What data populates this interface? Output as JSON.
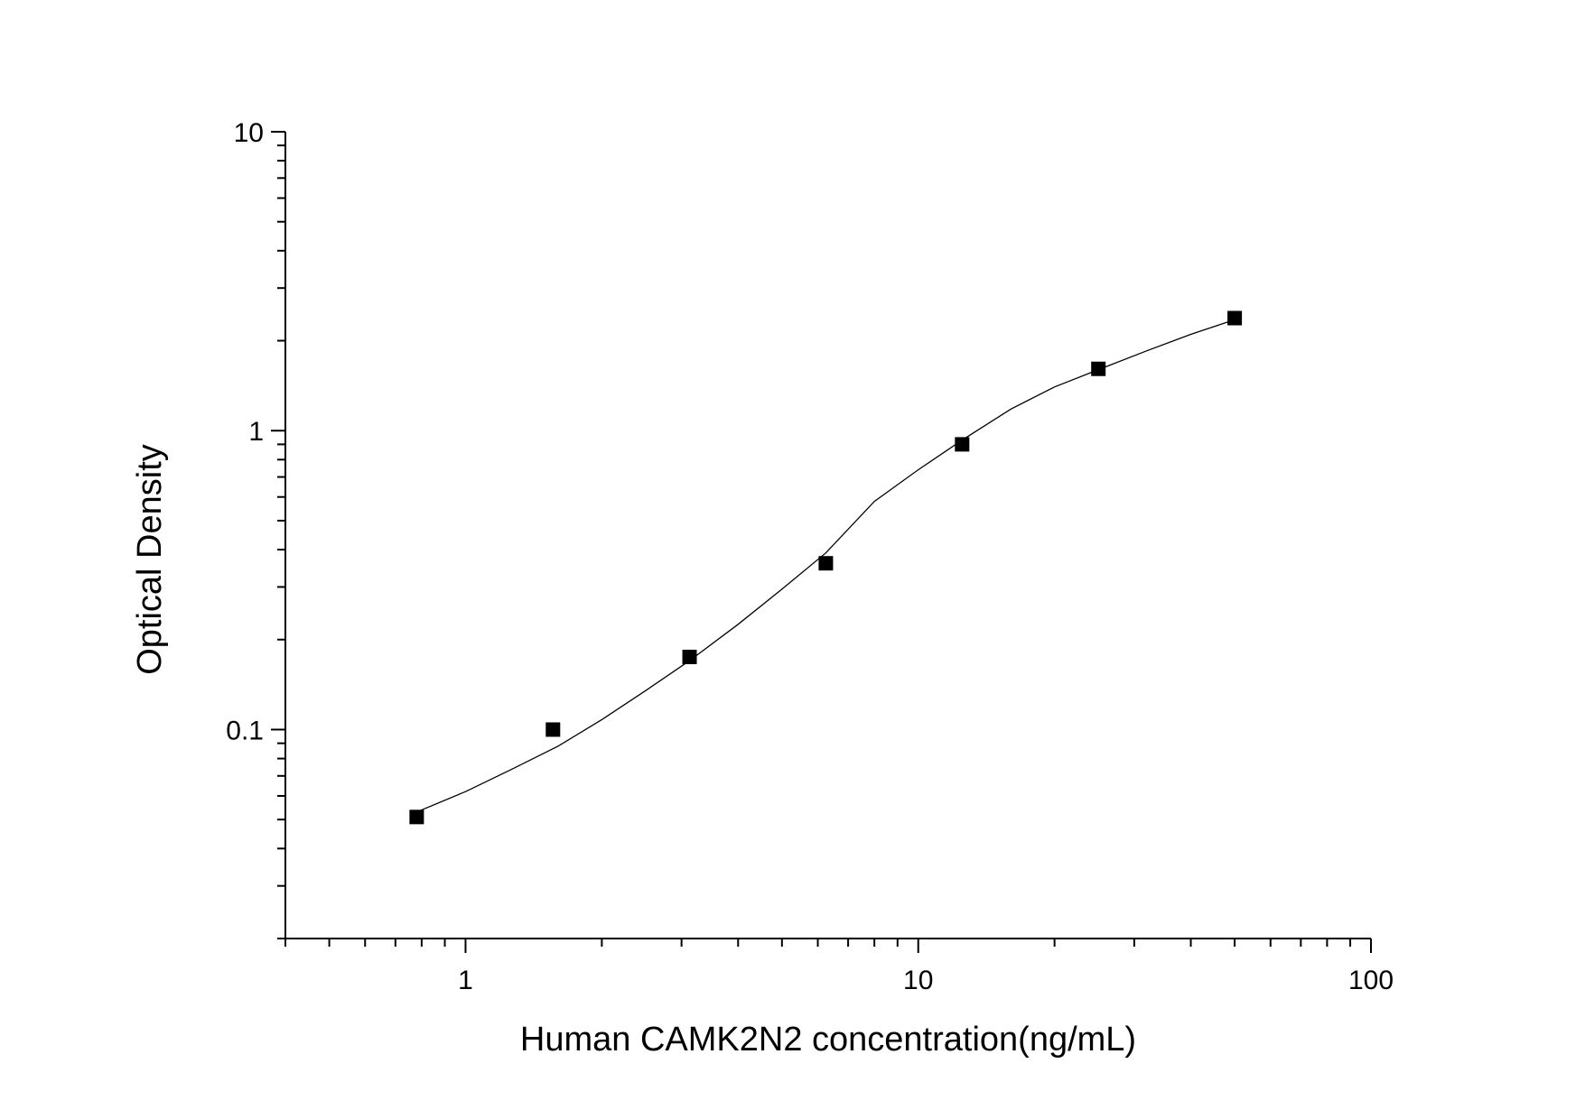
{
  "chart_data": {
    "type": "scatter",
    "title": "",
    "xlabel": "Human CAMK2N2 concentration(ng/mL)",
    "ylabel": "Optical Density",
    "x_scale": "log",
    "y_scale": "log",
    "xlim": [
      0.4,
      100
    ],
    "ylim": [
      0.02,
      10
    ],
    "x_ticks": [
      {
        "v": 1,
        "label": "1"
      },
      {
        "v": 10,
        "label": "10"
      },
      {
        "v": 100,
        "label": "100"
      }
    ],
    "y_ticks": [
      {
        "v": 0.1,
        "label": "0.1"
      },
      {
        "v": 1,
        "label": "1"
      },
      {
        "v": 10,
        "label": "10"
      }
    ],
    "grid": false,
    "legend": "none",
    "marker_color": "#000000",
    "points": {
      "x": [
        0.78,
        1.56,
        3.125,
        6.25,
        12.5,
        25,
        50
      ],
      "y": [
        0.051,
        0.1,
        0.175,
        0.36,
        0.9,
        1.61,
        2.38
      ]
    },
    "fit_curve": {
      "x": [
        0.78,
        1.0,
        1.25,
        1.6,
        2.0,
        2.5,
        3.125,
        4.0,
        5.0,
        6.25,
        8.0,
        10.0,
        12.5,
        16,
        20,
        25,
        32,
        40,
        50
      ],
      "y": [
        0.053,
        0.062,
        0.073,
        0.088,
        0.108,
        0.135,
        0.17,
        0.225,
        0.295,
        0.39,
        0.58,
        0.74,
        0.93,
        1.18,
        1.4,
        1.6,
        1.85,
        2.1,
        2.35
      ]
    }
  }
}
